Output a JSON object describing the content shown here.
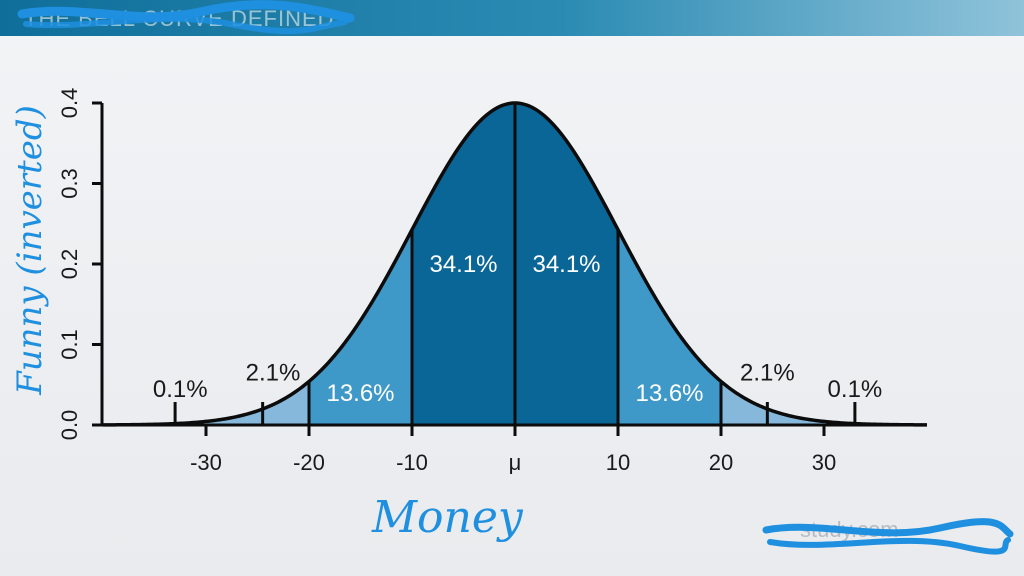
{
  "header": {
    "title": "THE BELL CURVE DEFINED"
  },
  "watermark": {
    "text": "study.com"
  },
  "annotations": {
    "y_hand": "Funny (inverted)",
    "x_hand": "Money"
  },
  "colors": {
    "dark": "#0b6698",
    "mid": "#3e98c8",
    "light": "#86b8dc",
    "outline": "#0c0c0c",
    "ink": "#1f8fe0"
  },
  "chart_data": {
    "type": "area",
    "title": "",
    "xlabel": "",
    "ylabel": "",
    "x_ticks": [
      {
        "value": -30,
        "label": "-30"
      },
      {
        "value": -20,
        "label": "-20"
      },
      {
        "value": -10,
        "label": "-10"
      },
      {
        "value": 0,
        "label": "μ"
      },
      {
        "value": 10,
        "label": "10"
      },
      {
        "value": 20,
        "label": "20"
      },
      {
        "value": 30,
        "label": "30"
      }
    ],
    "y_ticks": [
      {
        "value": 0.0,
        "label": "0.0"
      },
      {
        "value": 0.1,
        "label": "0.1"
      },
      {
        "value": 0.2,
        "label": "0.2"
      },
      {
        "value": 0.3,
        "label": "0.3"
      },
      {
        "value": 0.4,
        "label": "0.4"
      }
    ],
    "ylim": [
      0,
      0.4
    ],
    "mean": 0,
    "sd": 10,
    "peak": 0.4,
    "dividers": [
      -20,
      -10,
      0,
      10,
      20
    ],
    "regions": [
      {
        "from": -30,
        "to": -20,
        "shade": "light"
      },
      {
        "from": -20,
        "to": -10,
        "shade": "mid"
      },
      {
        "from": -10,
        "to": 0,
        "shade": "dark"
      },
      {
        "from": 0,
        "to": 10,
        "shade": "dark"
      },
      {
        "from": 10,
        "to": 20,
        "shade": "mid"
      },
      {
        "from": 20,
        "to": 30,
        "shade": "light"
      }
    ],
    "labels": [
      {
        "text": "34.1%",
        "x": -5,
        "y": 0.19,
        "color": "light-text"
      },
      {
        "text": "34.1%",
        "x": 5,
        "y": 0.19,
        "color": "light-text"
      },
      {
        "text": "13.6%",
        "x": -15,
        "y": 0.03,
        "color": "light-text"
      },
      {
        "text": "13.6%",
        "x": 15,
        "y": 0.03,
        "color": "light-text"
      },
      {
        "text": "2.1%",
        "x": -23.5,
        "y": 0.055,
        "color": "dark-text",
        "marker_x": -24.5
      },
      {
        "text": "2.1%",
        "x": 24.5,
        "y": 0.055,
        "color": "dark-text",
        "marker_x": 24.5
      },
      {
        "text": "0.1%",
        "x": -32.5,
        "y": 0.035,
        "color": "dark-text",
        "marker_x": -33
      },
      {
        "text": "0.1%",
        "x": 33,
        "y": 0.035,
        "color": "dark-text",
        "marker_x": 33
      }
    ]
  }
}
